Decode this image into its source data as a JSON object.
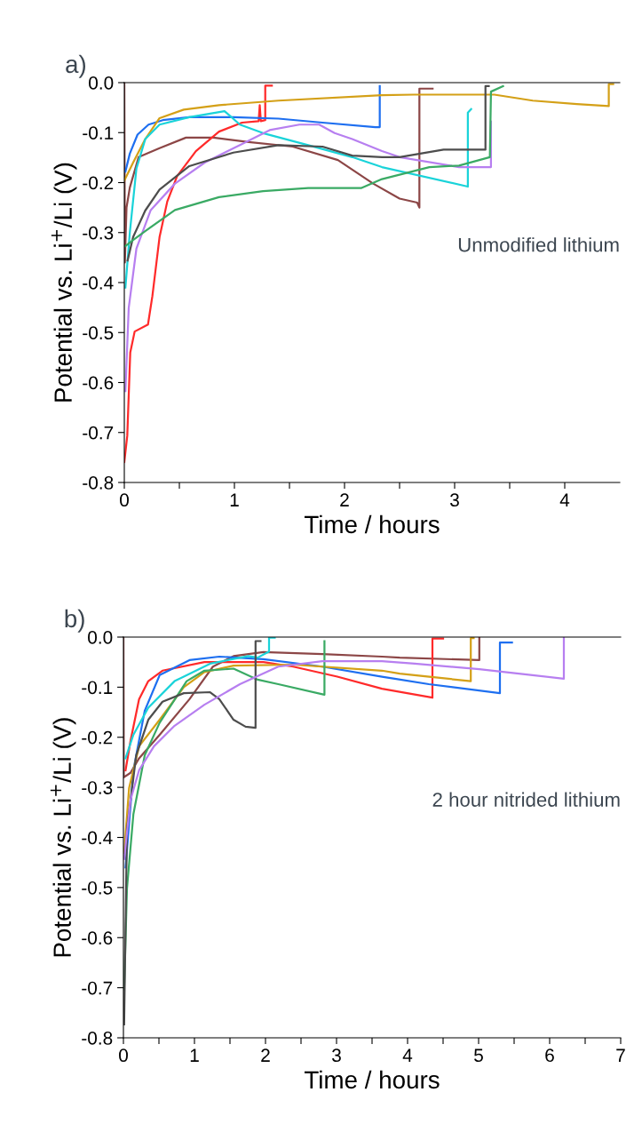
{
  "chart_data": [
    {
      "type": "line",
      "title": "a)",
      "xlabel": "Time / hours",
      "ylabel": "Potential vs. Li$^{+}$/Li (V)",
      "annotations": [
        "Unmodified lithium"
      ],
      "xlim": [
        0,
        4.5
      ],
      "ylim": [
        -0.8,
        0
      ],
      "grid": false,
      "marker": "none",
      "line_style": "solid",
      "xticks": [
        0,
        {
          "value": 0.5,
          "label": null
        },
        1,
        {
          "value": 1.5,
          "label": null
        },
        2,
        {
          "value": 2.5,
          "label": null
        },
        3,
        {
          "value": 3.5,
          "label": null
        },
        4
      ],
      "yticks": [
        {
          "value": 0,
          "label": "0.0"
        },
        {
          "value": -0.1,
          "label": "-0.1"
        },
        {
          "value": -0.2,
          "label": "-0.2"
        },
        {
          "value": -0.3,
          "label": "-0.3"
        },
        {
          "value": -0.4,
          "label": "-0.4"
        },
        {
          "value": -0.5,
          "label": "-0.5"
        },
        {
          "value": -0.6,
          "label": "-0.6"
        },
        {
          "value": -0.7,
          "label": "-0.7"
        },
        {
          "value": -0.8,
          "label": "-0.8"
        }
      ],
      "series": [
        {
          "color": "#8c4646",
          "x": [
            0,
            0.005,
            0.02,
            0.05,
            0.13,
            0.32,
            0.56,
            0.81,
            1.13,
            1.53,
            1.94,
            2.26,
            2.5,
            2.66,
            2.68,
            2.68,
            2.8
          ],
          "values": [
            0,
            -0.36,
            -0.25,
            -0.21,
            -0.149,
            -0.131,
            -0.11,
            -0.11,
            -0.119,
            -0.128,
            -0.155,
            -0.202,
            -0.232,
            -0.24,
            -0.25,
            -0.012,
            -0.012
          ]
        },
        {
          "color": "#ff2a2a",
          "x": [
            0,
            0.027,
            0.054,
            0.094,
            0.215,
            0.255,
            0.32,
            0.39,
            0.48,
            0.65,
            0.86,
            1.07,
            1.22,
            1.23,
            1.24,
            1.28,
            1.28,
            1.34
          ],
          "values": [
            -0.759,
            -0.706,
            -0.54,
            -0.498,
            -0.484,
            -0.427,
            -0.309,
            -0.238,
            -0.187,
            -0.137,
            -0.098,
            -0.08,
            -0.077,
            -0.045,
            -0.077,
            -0.075,
            -0.006,
            -0.006
          ]
        },
        {
          "color": "#1e6ff0",
          "x": [
            0.01,
            0.05,
            0.12,
            0.22,
            0.35,
            0.59,
            0.99,
            1.4,
            1.8,
            2.28,
            2.32,
            2.32
          ],
          "values": [
            -0.178,
            -0.142,
            -0.104,
            -0.084,
            -0.075,
            -0.069,
            -0.069,
            -0.072,
            -0.08,
            -0.089,
            -0.089,
            -0.007
          ]
        },
        {
          "color": "#d4a017",
          "x": [
            0,
            0.08,
            0.19,
            0.32,
            0.54,
            0.86,
            1.4,
            2.34,
            2.63,
            3.36,
            3.71,
            4.11,
            4.4,
            4.4,
            4.44
          ],
          "values": [
            -0.196,
            -0.16,
            -0.113,
            -0.071,
            -0.054,
            -0.045,
            -0.036,
            -0.025,
            -0.024,
            -0.024,
            -0.036,
            -0.043,
            -0.047,
            -0.003,
            -0.003
          ]
        },
        {
          "color": "#1ad3d9",
          "x": [
            0.01,
            0.05,
            0.11,
            0.19,
            0.32,
            0.59,
            0.91,
            1.05,
            1.26,
            1.67,
            2.07,
            2.34,
            3.12,
            3.12,
            3.15
          ],
          "values": [
            -0.41,
            -0.3,
            -0.172,
            -0.113,
            -0.084,
            -0.069,
            -0.057,
            -0.084,
            -0.101,
            -0.125,
            -0.149,
            -0.169,
            -0.208,
            -0.06,
            -0.053
          ]
        },
        {
          "color": "#b77ff0",
          "x": [
            0.01,
            0.04,
            0.11,
            0.24,
            0.46,
            0.73,
            1.05,
            1.32,
            1.59,
            1.77,
            1.91,
            2.07,
            2.34,
            2.5,
            3.04,
            3.33,
            3.33
          ],
          "values": [
            -0.617,
            -0.451,
            -0.332,
            -0.255,
            -0.202,
            -0.16,
            -0.125,
            -0.095,
            -0.084,
            -0.084,
            -0.101,
            -0.113,
            -0.137,
            -0.149,
            -0.169,
            -0.169,
            -0.078
          ]
        },
        {
          "color": "#4d4d4d",
          "x": [
            0.03,
            0.08,
            0.19,
            0.32,
            0.59,
            0.99,
            1.4,
            1.8,
            2.07,
            2.34,
            2.5,
            2.9,
            3.28,
            3.28,
            3.31
          ],
          "values": [
            -0.356,
            -0.309,
            -0.256,
            -0.214,
            -0.167,
            -0.14,
            -0.125,
            -0.128,
            -0.146,
            -0.149,
            -0.149,
            -0.134,
            -0.134,
            -0.007,
            -0.007
          ]
        },
        {
          "color": "#3aaa64",
          "x": [
            0.01,
            0.08,
            0.19,
            0.46,
            0.86,
            1.26,
            1.67,
            2.15,
            2.34,
            2.77,
            3.04,
            3.32,
            3.33,
            3.44
          ],
          "values": [
            -0.327,
            -0.315,
            -0.297,
            -0.255,
            -0.229,
            -0.217,
            -0.211,
            -0.211,
            -0.193,
            -0.169,
            -0.166,
            -0.149,
            -0.018,
            -0.007
          ]
        }
      ]
    },
    {
      "type": "line",
      "title": "b)",
      "xlabel": "Time / hours",
      "ylabel": "Potential vs. Li$^{+}$/Li (V)",
      "annotations": [
        "2 hour nitrided lithium"
      ],
      "xlim": [
        0,
        7
      ],
      "ylim": [
        -0.8,
        0
      ],
      "grid": false,
      "marker": "none",
      "line_style": "solid",
      "xticks": [
        0,
        {
          "value": 0.5,
          "label": null
        },
        1,
        {
          "value": 1.5,
          "label": null
        },
        2,
        {
          "value": 2.5,
          "label": null
        },
        3,
        {
          "value": 3.5,
          "label": null
        },
        4,
        {
          "value": 4.5,
          "label": null
        },
        5,
        {
          "value": 5.5,
          "label": null
        },
        6,
        {
          "value": 6.5,
          "label": null
        },
        7
      ],
      "yticks": [
        {
          "value": 0,
          "label": "0.0"
        },
        {
          "value": -0.1,
          "label": "-0.1"
        },
        {
          "value": -0.2,
          "label": "-0.2"
        },
        {
          "value": -0.3,
          "label": "-0.3"
        },
        {
          "value": -0.4,
          "label": "-0.4"
        },
        {
          "value": -0.5,
          "label": "-0.5"
        },
        {
          "value": -0.6,
          "label": "-0.6"
        },
        {
          "value": -0.7,
          "label": "-0.7"
        },
        {
          "value": -0.8,
          "label": "-0.8"
        }
      ],
      "series": [
        {
          "color": "#8c4646",
          "x": [
            0,
            0.005,
            0.1,
            0.22,
            0.51,
            0.93,
            1.26,
            1.55,
            1.97,
            2.8,
            3.64,
            3.89,
            5.01,
            5.01
          ],
          "values": [
            0,
            -0.28,
            -0.271,
            -0.242,
            -0.195,
            -0.124,
            -0.059,
            -0.038,
            -0.03,
            -0.034,
            -0.039,
            -0.041,
            -0.046,
            0
          ]
        },
        {
          "color": "#ff2a2a",
          "x": [
            0.03,
            0.1,
            0.22,
            0.35,
            0.55,
            1.14,
            1.97,
            2.39,
            3.01,
            3.64,
            4.35,
            4.35,
            4.5
          ],
          "values": [
            -0.266,
            -0.207,
            -0.124,
            -0.088,
            -0.067,
            -0.05,
            -0.05,
            -0.059,
            -0.079,
            -0.103,
            -0.121,
            -0.003,
            -0.003
          ]
        },
        {
          "color": "#1e6ff0",
          "x": [
            0.03,
            0.14,
            0.3,
            0.51,
            0.93,
            1.35,
            1.97,
            2.8,
            3.64,
            4.3,
            5.3,
            5.3,
            5.47
          ],
          "values": [
            -0.46,
            -0.266,
            -0.147,
            -0.076,
            -0.046,
            -0.039,
            -0.044,
            -0.059,
            -0.079,
            -0.094,
            -0.112,
            -0.011,
            -0.011
          ]
        },
        {
          "color": "#d4a017",
          "x": [
            0.01,
            0.08,
            0.22,
            0.51,
            0.85,
            1.14,
            1.55,
            2.39,
            3.64,
            3.89,
            4.89,
            4.89,
            4.93
          ],
          "values": [
            -0.431,
            -0.301,
            -0.218,
            -0.165,
            -0.1,
            -0.07,
            -0.057,
            -0.055,
            -0.067,
            -0.073,
            -0.088,
            -0.002,
            -0.002
          ]
        },
        {
          "color": "#1ad3d9",
          "x": [
            0.03,
            0.14,
            0.35,
            0.72,
            1.22,
            1.76,
            1.89,
            2.05,
            2.05,
            2.13
          ],
          "values": [
            -0.242,
            -0.195,
            -0.141,
            -0.088,
            -0.053,
            -0.038,
            -0.041,
            -0.029,
            -0.001,
            -0.001
          ]
        },
        {
          "color": "#3aaa64",
          "x": [
            0.01,
            0.05,
            0.14,
            0.3,
            0.51,
            0.89,
            1.14,
            1.55,
            1.89,
            2.18,
            2.83,
            2.83
          ],
          "values": [
            -0.703,
            -0.502,
            -0.354,
            -0.236,
            -0.171,
            -0.088,
            -0.067,
            -0.063,
            -0.085,
            -0.094,
            -0.115,
            -0.008
          ]
        },
        {
          "color": "#4d4d4d",
          "x": [
            0.01,
            0.05,
            0.18,
            0.35,
            0.55,
            0.85,
            1.22,
            1.35,
            1.55,
            1.72,
            1.86,
            1.86,
            1.93
          ],
          "values": [
            -0.773,
            -0.383,
            -0.236,
            -0.165,
            -0.129,
            -0.112,
            -0.11,
            -0.124,
            -0.165,
            -0.179,
            -0.181,
            -0.008,
            -0.008
          ]
        },
        {
          "color": "#b77ff0",
          "x": [
            0.01,
            0.1,
            0.22,
            0.43,
            0.72,
            1.14,
            1.64,
            2.18,
            2.8,
            3.64,
            4.1,
            5.01,
            5.76,
            6.2,
            6.2
          ],
          "values": [
            -0.443,
            -0.325,
            -0.266,
            -0.218,
            -0.177,
            -0.135,
            -0.094,
            -0.059,
            -0.048,
            -0.048,
            -0.053,
            -0.064,
            -0.076,
            -0.083,
            -0.002
          ]
        }
      ]
    }
  ]
}
